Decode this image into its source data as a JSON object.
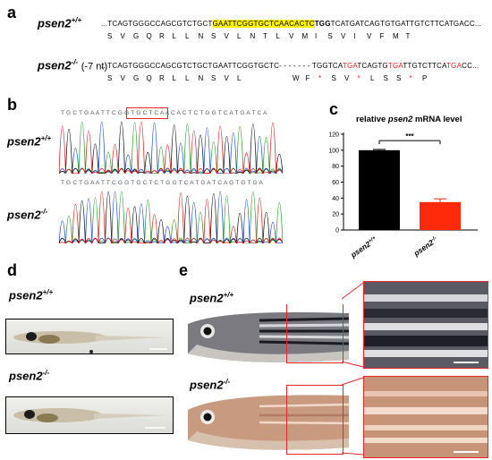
{
  "panels": {
    "a": "a",
    "b": "b",
    "c": "c",
    "d": "d",
    "e": "e"
  },
  "genotypes": {
    "wt": "psen2",
    "wt_sup": "+/+",
    "mut": "psen2",
    "mut_sup": "-/-",
    "mut_note": "(-7 nt)"
  },
  "seq_a": {
    "wt_pre": "...TCAGTGGGCCAGCGTCTGCT",
    "wt_highlight": "GAATTCGGTGCTCAACACTC",
    "wt_bold": "TGG",
    "wt_post": "TCATGATCAGTGTGATTGTCTTCATGACC...",
    "wt_aa": [
      "S",
      "V",
      "G",
      "Q",
      "R",
      "L",
      "L",
      "N",
      "S",
      "V",
      "L",
      "N",
      "T",
      "L",
      "V",
      "M",
      "I",
      "S",
      "V",
      "I",
      "V",
      "F",
      "M",
      "T"
    ],
    "mut_pre": "...TCAGTGGGCCAGCGTCTGCTGAATTCGGTGCTC- - - - - - - TGGTCA",
    "mut_r1": "TGA",
    "mut_m1": "TCAGTG",
    "mut_r2": "TGA",
    "mut_m2": "TTGTCTTCA",
    "mut_r3": "TGA",
    "mut_post": "CC...",
    "mut_aa_a": [
      "S",
      "V",
      "G",
      "Q",
      "R",
      "L",
      "L",
      "N",
      "S",
      "V",
      "L"
    ],
    "mut_aa_b": [
      "W",
      "F",
      "*",
      "S",
      "V",
      "*",
      "L",
      "S",
      "S",
      "*",
      "P"
    ]
  },
  "seq_b": {
    "wt_read": "T G C T G A A T T C G G T G C T C A A C A C T C T G G T C A T G A T C A",
    "mut_read": "T G C T G A A T T C G G T G C T C T G G T C A T G A T C A G T G T G A"
  },
  "chart_data": {
    "type": "bar",
    "title_pre": "relative ",
    "title_gene": "psen2",
    "title_post": " mRNA level",
    "categories": [
      "psen2+/+",
      "psen2-/-"
    ],
    "category_gene": "psen2",
    "category_sups": [
      "+/+",
      "-/-"
    ],
    "values": [
      100,
      35
    ],
    "errors": [
      1,
      4
    ],
    "colors": [
      "#000000",
      "#ff2a0a"
    ],
    "ylim": [
      0,
      120
    ],
    "yticks": [
      0,
      20,
      40,
      60,
      80,
      100,
      120
    ],
    "significance": "***"
  },
  "colors": {
    "highlight": "#fff200",
    "red": "#e31e24",
    "frame": "#e8262b"
  }
}
